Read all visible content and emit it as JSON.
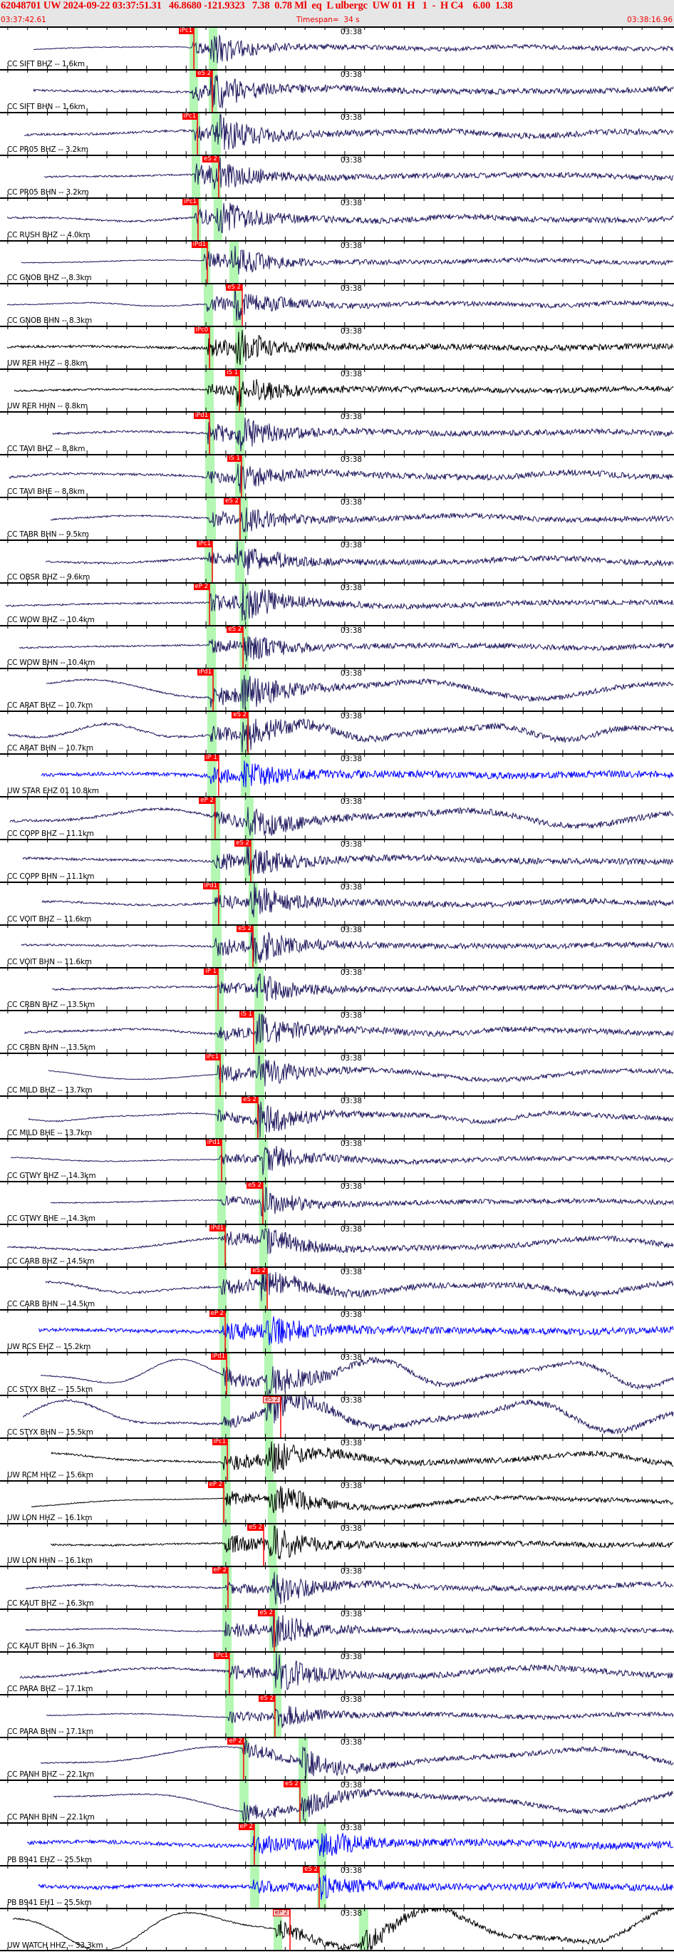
{
  "header": {
    "title": "62048701 UW 2024-09-22 03:37:51.31   46.8680 -121.9323   7.38  0.78 Ml  eq  L ulbergc  UW 01  H   1  -  H C4    6.00  1.38",
    "start_time": "03:37:42.61",
    "timespan_label": "Timespan=  34 s",
    "timespan_s": 34,
    "end_time": "03:38:16.96",
    "minute_label": "03:38",
    "text_color": "#ee0000",
    "background": "#e6e6e6"
  },
  "colors": {
    "band": "#b3f7b3",
    "pick": "#ff0000",
    "navy": "#1f1a5e",
    "blue": "#0000ff",
    "black": "#000000"
  },
  "panels": [
    {
      "label": "CC SIFT BHZ -- 1.6km",
      "color": "navy",
      "pick": {
        "label": "iPc1",
        "time": "03:37:52.39"
      },
      "bands": [
        [
          "03:37:52.17",
          "03:37:52.60"
        ],
        [
          "03:37:53.14",
          "03:37:53.57"
        ]
      ]
    },
    {
      "label": "CC SIFT BHN -- 1.6km",
      "color": "navy",
      "pick": {
        "label": "eS 2",
        "time": "03:37:53.32"
      },
      "bands": [
        [
          "03:37:52.17",
          "03:37:52.60"
        ],
        [
          "03:37:53.14",
          "03:37:53.57"
        ]
      ]
    },
    {
      "label": "CC PR05 BHZ -- 3.2km",
      "color": "navy",
      "pick": {
        "label": "iPc1",
        "time": "03:37:52.57"
      },
      "bands": [
        [
          "03:37:52.28",
          "03:37:52.71"
        ],
        [
          "03:37:53.28",
          "03:37:53.75"
        ]
      ]
    },
    {
      "label": "CC PR05 BHN -- 3.2km",
      "color": "navy",
      "pick": {
        "label": "eS 2",
        "time": "03:37:53.64"
      },
      "bands": [
        [
          "03:37:52.28",
          "03:37:52.71"
        ],
        [
          "03:37:53.28",
          "03:37:53.75"
        ]
      ]
    },
    {
      "label": "CC RUSH BHZ -- 4.0km",
      "color": "navy",
      "pick": {
        "label": "iPc1",
        "time": "03:37:52.60"
      },
      "bands": [
        [
          "03:37:52.28",
          "03:37:52.75"
        ],
        [
          "03:37:53.39",
          "03:37:53.82"
        ]
      ]
    },
    {
      "label": "CC GNOB BHZ -- 8.3km",
      "color": "navy",
      "pick": {
        "label": "iPd1",
        "time": "03:37:53.07"
      },
      "bands": [
        [
          "03:37:52.75",
          "03:37:53.21"
        ],
        [
          "03:37:54.18",
          "03:37:54.65"
        ]
      ]
    },
    {
      "label": "CC GNOB BHN -- 8.3km",
      "color": "navy",
      "pick": {
        "label": "eS 2",
        "time": "03:37:54.83"
      },
      "bands": [
        [
          "03:37:52.89",
          "03:37:53.36"
        ],
        [
          "03:37:54.36",
          "03:37:54.79"
        ]
      ]
    },
    {
      "label": "UW RER HHZ -- 8.8km",
      "color": "black",
      "pick": {
        "label": "iPc0",
        "time": "03:37:53.18"
      },
      "bands": [
        [
          "03:37:52.93",
          "03:37:53.39"
        ],
        [
          "03:37:54.47",
          "03:37:54.90"
        ]
      ]
    },
    {
      "label": "UW RER HHN -- 8.8km",
      "color": "black",
      "pick": {
        "label": "iS 1",
        "time": "03:37:54.69"
      },
      "bands": [
        [
          "03:37:52.93",
          "03:37:53.39"
        ],
        [
          "03:37:54.47",
          "03:37:54.90"
        ]
      ]
    },
    {
      "label": "CC TAVI BHZ -- 8.8km",
      "color": "navy",
      "pick": {
        "label": "iPd1",
        "time": "03:37:53.18"
      },
      "bands": [
        [
          "03:37:52.96",
          "03:37:53.43"
        ],
        [
          "03:37:54.47",
          "03:37:54.94"
        ]
      ]
    },
    {
      "label": "CC TAVI BHE -- 8.8km",
      "color": "navy",
      "pick": {
        "label": "iS 1",
        "time": "03:37:54.79"
      },
      "bands": [
        [
          "03:37:52.96",
          "03:37:53.43"
        ],
        [
          "03:37:54.47",
          "03:37:54.94"
        ]
      ]
    },
    {
      "label": "CC TABR BHN -- 9.5km",
      "color": "navy",
      "pick": {
        "label": "eS 2",
        "time": "03:37:54.72"
      },
      "bands": [
        [
          "03:37:53.03",
          "03:37:53.50"
        ],
        [
          "03:37:54.65",
          "03:37:55.12"
        ]
      ]
    },
    {
      "label": "CC OBSR BHZ -- 9.6km",
      "color": "navy",
      "pick": {
        "label": "iPc1",
        "time": "03:37:53.32"
      },
      "bands": [
        [
          "03:37:52.93",
          "03:37:53.36"
        ],
        [
          "03:37:54.47",
          "03:37:54.94"
        ]
      ]
    },
    {
      "label": "CC WOW BHZ -- 10.4km",
      "color": "navy",
      "pick": {
        "label": "eP 2",
        "time": "03:37:53.18"
      },
      "bands": [
        [
          "03:37:53.03",
          "03:37:53.50"
        ],
        [
          "03:37:54.69",
          "03:37:55.15"
        ]
      ]
    },
    {
      "label": "CC WOW BHN -- 10.4km",
      "color": "navy",
      "pick": {
        "label": "eS 2",
        "time": "03:37:54.87"
      },
      "bands": [
        [
          "03:37:53.03",
          "03:37:53.50"
        ],
        [
          "03:37:54.69",
          "03:37:55.15"
        ]
      ]
    },
    {
      "label": "CC ARAT BHZ -- 10.7km",
      "color": "navy",
      "pick": {
        "label": "iPd1",
        "time": "03:37:53.36"
      },
      "bands": [
        [
          "03:37:53.07",
          "03:37:53.54"
        ],
        [
          "03:37:54.72",
          "03:37:55.19"
        ]
      ]
    },
    {
      "label": "CC ARAT BHN -- 10.7km",
      "color": "navy",
      "pick": {
        "label": "eS 2",
        "time": "03:37:55.12"
      },
      "bands": [
        [
          "03:37:53.07",
          "03:37:53.54"
        ],
        [
          "03:37:54.72",
          "03:37:55.19"
        ]
      ]
    },
    {
      "label": "UW STAR EHZ 01 10.8km",
      "color": "blue",
      "pick": {
        "label": "iP 1",
        "time": "03:37:53.64"
      },
      "bands": [
        [
          "03:37:53.07",
          "03:37:53.54"
        ],
        [
          "03:37:54.76",
          "03:37:55.23"
        ]
      ]
    },
    {
      "label": "CC COPP BHZ -- 11.1km",
      "color": "navy",
      "pick": {
        "label": "eP 2",
        "time": "03:37:53.46"
      },
      "bands": [
        [
          "03:37:53.25",
          "03:37:53.72"
        ],
        [
          "03:37:54.94",
          "03:37:55.40"
        ]
      ]
    },
    {
      "label": "CC COPP BHN -- 11.1km",
      "color": "navy",
      "pick": {
        "label": "eS 2",
        "time": "03:37:55.26"
      },
      "bands": [
        [
          "03:37:53.25",
          "03:37:53.72"
        ],
        [
          "03:37:54.94",
          "03:37:55.40"
        ]
      ]
    },
    {
      "label": "CC VOIT BHZ -- 11.6km",
      "color": "navy",
      "pick": {
        "label": "iPd1",
        "time": "03:37:53.64"
      },
      "bands": [
        [
          "03:37:53.32",
          "03:37:53.79"
        ],
        [
          "03:37:55.15",
          "03:37:55.62"
        ]
      ]
    },
    {
      "label": "CC VOIT BHN -- 11.6km",
      "color": "navy",
      "pick": {
        "label": "eS 2",
        "time": "03:37:55.37"
      },
      "bands": [
        [
          "03:37:53.32",
          "03:37:53.79"
        ],
        [
          "03:37:55.15",
          "03:37:55.62"
        ]
      ]
    },
    {
      "label": "CC CRBN BHZ -- 13.5km",
      "color": "navy",
      "pick": {
        "label": "iP 1",
        "time": "03:37:53.61"
      },
      "bands": [
        [
          "03:37:53.46",
          "03:37:53.90"
        ],
        [
          "03:37:55.44",
          "03:37:55.91"
        ]
      ]
    },
    {
      "label": "CC CRBN BHN -- 13.5km",
      "color": "navy",
      "pick": {
        "label": "iS 1",
        "time": "03:37:55.40"
      },
      "bands": [
        [
          "03:37:53.46",
          "03:37:53.90"
        ],
        [
          "03:37:55.44",
          "03:37:55.91"
        ]
      ]
    },
    {
      "label": "CC MILD BHZ -- 13.7km",
      "color": "navy",
      "pick": {
        "label": "iPc1",
        "time": "03:37:53.72"
      },
      "bands": [
        [
          "03:37:53.46",
          "03:37:53.90"
        ],
        [
          "03:37:55.48",
          "03:37:55.94"
        ]
      ]
    },
    {
      "label": "CC MILD BHE -- 13.7km",
      "color": "navy",
      "pick": {
        "label": "eS 2",
        "time": "03:37:55.62"
      },
      "bands": [
        [
          "03:37:53.46",
          "03:37:53.90"
        ],
        [
          "03:37:55.48",
          "03:37:55.94"
        ]
      ]
    },
    {
      "label": "CC GTWY BHZ -- 14.3km",
      "color": "navy",
      "pick": {
        "label": "iPd1",
        "time": "03:37:53.79"
      },
      "bands": [
        [
          "03:37:53.57",
          "03:37:54.00"
        ],
        [
          "03:37:55.66",
          "03:37:56.12"
        ]
      ]
    },
    {
      "label": "CC GTWY BHE -- 14.3km",
      "color": "navy",
      "pick": {
        "label": "eS 2",
        "time": "03:37:55.87"
      },
      "bands": [
        [
          "03:37:53.57",
          "03:37:54.00"
        ],
        [
          "03:37:55.66",
          "03:37:56.12"
        ]
      ]
    },
    {
      "label": "CC CARB BHZ -- 14.5km",
      "color": "navy",
      "pick": {
        "label": "iPd1",
        "time": "03:37:53.97"
      },
      "bands": [
        [
          "03:37:53.61",
          "03:37:54.04"
        ],
        [
          "03:37:55.69",
          "03:37:56.12"
        ]
      ]
    },
    {
      "label": "CC CARB BHN -- 14.5km",
      "color": "navy",
      "pick": {
        "label": "eS 2",
        "time": "03:37:56.09"
      },
      "bands": [
        [
          "03:37:53.61",
          "03:37:54.04"
        ],
        [
          "03:37:55.69",
          "03:37:56.12"
        ]
      ]
    },
    {
      "label": "UW RCS EHZ -- 15.2km",
      "color": "blue",
      "pick": {
        "label": "eP 2",
        "time": "03:37:53.97"
      },
      "bands": [
        [
          "03:37:53.68",
          "03:37:54.15"
        ],
        [
          "03:37:55.87",
          "03:37:56.30"
        ]
      ]
    },
    {
      "label": "CC STYX BHZ -- 15.5km",
      "color": "navy",
      "pick": {
        "label": "iPd1",
        "time": "03:37:54.04"
      },
      "bands": [
        [
          "03:37:53.75",
          "03:37:54.22"
        ],
        [
          "03:37:55.94",
          "03:37:56.38"
        ]
      ]
    },
    {
      "label": "CC STYX BHN -- 15.5km",
      "color": "navy",
      "pick": {
        "label": "eS 2",
        "time": "03:37:56.77",
        "style": "soft"
      },
      "bands": [
        [
          "03:37:53.75",
          "03:37:54.22"
        ],
        [
          "03:37:55.94",
          "03:37:56.38"
        ]
      ]
    },
    {
      "label": "UW RCM HHZ -- 15.6km",
      "color": "black",
      "pick": {
        "label": "iPc1",
        "time": "03:37:54.08"
      },
      "bands": [
        [
          "03:37:53.75",
          "03:37:54.22"
        ],
        [
          "03:37:55.98",
          "03:37:56.41"
        ]
      ]
    },
    {
      "label": "UW LON HHZ -- 16.1km",
      "color": "black",
      "pick": {
        "label": "eP 2",
        "time": "03:37:53.90"
      },
      "bands": [
        [
          "03:37:53.82",
          "03:37:54.25"
        ],
        [
          "03:37:56.12",
          "03:37:56.56"
        ]
      ]
    },
    {
      "label": "UW LON HHN -- 16.1km",
      "color": "black",
      "pick": {
        "label": "eS 2",
        "time": "03:37:55.91"
      },
      "bands": [
        [
          "03:37:53.82",
          "03:37:54.25"
        ],
        [
          "03:37:56.12",
          "03:37:56.56"
        ]
      ]
    },
    {
      "label": "CC KAUT BHZ -- 16.3km",
      "color": "navy",
      "pick": {
        "label": "eP 2",
        "time": "03:37:54.11"
      },
      "bands": [
        [
          "03:37:53.82",
          "03:37:54.29"
        ],
        [
          "03:37:56.20",
          "03:37:56.63"
        ]
      ]
    },
    {
      "label": "CC KAUT BHN -- 16.3km",
      "color": "navy",
      "pick": {
        "label": "eS 2",
        "time": "03:37:56.45"
      },
      "bands": [
        [
          "03:37:53.82",
          "03:37:54.29"
        ],
        [
          "03:37:56.20",
          "03:37:56.63"
        ]
      ]
    },
    {
      "label": "CC PARA BHZ -- 17.1km",
      "color": "navy",
      "pick": {
        "label": "iPc1",
        "time": "03:37:54.18"
      },
      "bands": [
        [
          "03:37:53.97",
          "03:37:54.40"
        ],
        [
          "03:37:56.38",
          "03:37:56.81"
        ]
      ]
    },
    {
      "label": "CC PARA BHN -- 17.1km",
      "color": "navy",
      "pick": {
        "label": "eS 2",
        "time": "03:37:56.48"
      },
      "bands": [
        [
          "03:37:53.97",
          "03:37:54.40"
        ],
        [
          "03:37:56.38",
          "03:37:56.81"
        ]
      ]
    },
    {
      "label": "CC PANH BHZ -- 22.1km",
      "color": "navy",
      "pick": {
        "label": "eP 2",
        "time": "03:37:54.90"
      },
      "bands": [
        [
          "03:37:54.69",
          "03:37:55.15"
        ],
        [
          "03:37:57.67",
          "03:37:58.14"
        ]
      ]
    },
    {
      "label": "CC PANH BHN -- 22.1km",
      "color": "navy",
      "pick": {
        "label": "eS 2",
        "time": "03:37:57.74"
      },
      "bands": [
        [
          "03:37:54.69",
          "03:37:55.15"
        ],
        [
          "03:37:57.67",
          "03:37:58.14"
        ]
      ]
    },
    {
      "label": "PB B941 EHZ -- 25.5km",
      "color": "blue",
      "pick": {
        "label": "eP 2",
        "time": "03:37:55.44"
      },
      "bands": [
        [
          "03:37:55.23",
          "03:37:55.69"
        ],
        [
          "03:37:58.60",
          "03:37:59.07"
        ]
      ]
    },
    {
      "label": "PB B941 EH1 -- 25.5km",
      "color": "blue",
      "pick": {
        "label": "eS 2",
        "time": "03:37:58.71"
      },
      "bands": [
        [
          "03:37:55.23",
          "03:37:55.69"
        ],
        [
          "03:37:58.60",
          "03:37:59.07"
        ]
      ]
    },
    {
      "label": "UW WATCH HHZ -- 33.3km",
      "color": "black",
      "pick": {
        "label": "eP 2",
        "time": "03:37:57.24",
        "style": "soft"
      },
      "bands": [
        [
          "03:37:56.41",
          "03:37:56.84"
        ],
        [
          "03:38:00.72",
          "03:38:01.19"
        ]
      ]
    }
  ]
}
